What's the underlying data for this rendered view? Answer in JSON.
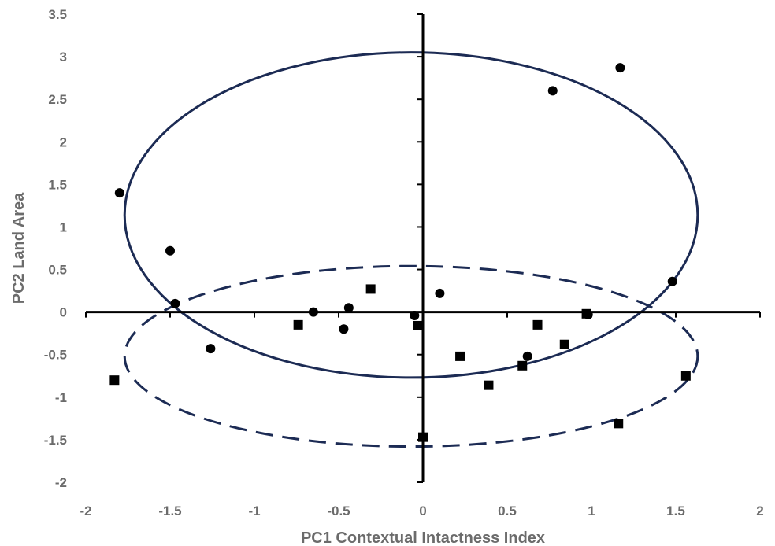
{
  "chart_data": {
    "type": "scatter",
    "title": "",
    "xlabel": "PC1 Contextual Intactness Index",
    "ylabel": "PC2 Land Area",
    "xlim": [
      -2,
      2
    ],
    "ylim": [
      -2,
      3.5
    ],
    "xticks": [
      -2,
      -1.5,
      -1,
      -0.5,
      0,
      0.5,
      1,
      1.5,
      2
    ],
    "yticks": [
      3.5,
      3,
      2.5,
      2,
      1.5,
      1,
      0.5,
      0,
      -0.5,
      -1,
      -1.5,
      -2
    ],
    "xtick_labels": [
      "-2",
      "-1.5",
      "-1",
      "-0.5",
      "0",
      "0.5",
      "1",
      "1.5",
      "2"
    ],
    "ytick_labels": [
      "3.5",
      "3",
      "2.5",
      "2",
      "1.5",
      "1",
      "0.5",
      "0",
      "-0.5",
      "-1",
      "-1.5",
      "-2"
    ],
    "grid": false,
    "series": [
      {
        "marker": "circle",
        "color": "#000000",
        "points": [
          [
            -1.8,
            1.4
          ],
          [
            -1.5,
            0.72
          ],
          [
            -1.47,
            0.1
          ],
          [
            -1.26,
            -0.43
          ],
          [
            -0.65,
            0.0
          ],
          [
            -0.47,
            -0.2
          ],
          [
            -0.44,
            0.05
          ],
          [
            -0.05,
            -0.04
          ],
          [
            0.1,
            0.22
          ],
          [
            0.62,
            -0.52
          ],
          [
            0.77,
            2.6
          ],
          [
            1.17,
            2.87
          ],
          [
            0.98,
            -0.03
          ],
          [
            1.48,
            0.36
          ]
        ]
      },
      {
        "marker": "square",
        "color": "#000000",
        "points": [
          [
            -1.83,
            -0.8
          ],
          [
            -0.74,
            -0.15
          ],
          [
            -0.31,
            0.27
          ],
          [
            -0.03,
            -0.16
          ],
          [
            0.0,
            -1.47
          ],
          [
            0.22,
            -0.52
          ],
          [
            0.39,
            -0.86
          ],
          [
            0.59,
            -0.63
          ],
          [
            0.68,
            -0.15
          ],
          [
            0.84,
            -0.38
          ],
          [
            0.97,
            -0.02
          ],
          [
            1.16,
            -1.31
          ],
          [
            1.56,
            -0.75
          ]
        ]
      }
    ],
    "ellipses": [
      {
        "style": "solid",
        "cx": -0.07,
        "cy": 1.14,
        "rx": 1.7,
        "ry": 1.91,
        "color": "#1c2b54"
      },
      {
        "style": "dashed",
        "cx": -0.07,
        "cy": -0.52,
        "rx": 1.7,
        "ry": 1.06,
        "color": "#1c2b54"
      }
    ]
  }
}
